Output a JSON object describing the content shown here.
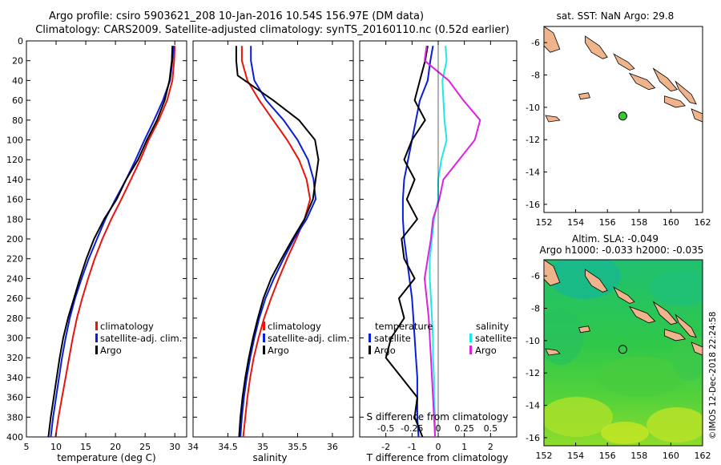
{
  "header": {
    "title_line1": "Argo profile: csiro 5903621_208 10-Jan-2016 10.54S 156.97E (DM data)",
    "title_line2": "Climatology: CARS2009. Satellite-adjusted climatology: synTS_20160110.nc (0.52d earlier)"
  },
  "colors": {
    "climatology": "#e8140c",
    "satellite": "#0a1ed8",
    "argo": "#000000",
    "argo_salinity_diff": "#e020e0",
    "satellite_salinity_diff": "#20e8e8",
    "land": "#f0b48c",
    "marker": "#33cc33"
  },
  "footer": {
    "credit": "©IMOS 12-Dec-2018 22:24:58"
  },
  "chart_data": [
    {
      "id": "temperature",
      "type": "line",
      "xlabel": "temperature (deg C)",
      "ylabel": "",
      "xlim": [
        5,
        32
      ],
      "ylim": [
        400,
        0
      ],
      "xticks": [
        "5",
        "10",
        "15",
        "20",
        "25",
        "30"
      ],
      "yticks": [
        "0",
        "20",
        "40",
        "60",
        "80",
        "100",
        "120",
        "140",
        "160",
        "180",
        "200",
        "220",
        "240",
        "260",
        "280",
        "300",
        "320",
        "340",
        "360",
        "380",
        "400"
      ],
      "legend": [
        "climatology",
        "satellite-adj. clim.",
        "Argo"
      ],
      "series": [
        {
          "name": "climatology",
          "color": "#e8140c",
          "x": [
            30.0,
            29.9,
            29.6,
            28.7,
            27.3,
            25.6,
            24.2,
            22.6,
            21.0,
            19.3,
            17.8,
            16.5,
            15.4,
            14.4,
            13.5,
            12.8,
            12.2,
            11.6,
            11.0,
            10.4,
            9.9
          ],
          "y": [
            5,
            20,
            40,
            60,
            80,
            100,
            120,
            140,
            160,
            180,
            200,
            220,
            240,
            260,
            280,
            300,
            320,
            340,
            360,
            380,
            400
          ]
        },
        {
          "name": "satellite-adj. clim.",
          "color": "#0a1ed8",
          "x": [
            29.8,
            29.6,
            29.2,
            28.0,
            26.5,
            24.9,
            23.4,
            21.8,
            20.0,
            18.3,
            16.9,
            15.5,
            14.3,
            13.2,
            12.3,
            11.6,
            11.0,
            10.5,
            10.0,
            9.5,
            9.1
          ],
          "y": [
            5,
            20,
            40,
            60,
            80,
            100,
            120,
            140,
            160,
            180,
            200,
            220,
            240,
            260,
            280,
            300,
            320,
            340,
            360,
            380,
            400
          ]
        },
        {
          "name": "Argo",
          "color": "#000000",
          "x": [
            29.6,
            29.5,
            29.1,
            28.3,
            27.0,
            25.3,
            23.8,
            21.8,
            20.2,
            18.1,
            16.4,
            15.1,
            14.0,
            13.0,
            12.0,
            11.2,
            10.6,
            10.1,
            9.6,
            9.1,
            8.7
          ],
          "y": [
            5,
            20,
            40,
            60,
            80,
            100,
            120,
            140,
            160,
            180,
            200,
            220,
            240,
            260,
            280,
            300,
            320,
            340,
            360,
            380,
            400
          ]
        }
      ]
    },
    {
      "id": "salinity",
      "type": "line",
      "xlabel": "salinity",
      "ylabel": "",
      "xlim": [
        34,
        36.3
      ],
      "ylim": [
        400,
        0
      ],
      "xticks": [
        "34",
        "34.5",
        "35",
        "35.5",
        "36"
      ],
      "legend": [
        "climatology",
        "satellite-adj. clim.",
        "Argo"
      ],
      "series": [
        {
          "name": "climatology",
          "color": "#e8140c",
          "x": [
            34.7,
            34.7,
            34.78,
            34.95,
            35.15,
            35.35,
            35.52,
            35.63,
            35.68,
            35.6,
            35.48,
            35.35,
            35.23,
            35.12,
            35.02,
            34.94,
            34.87,
            34.82,
            34.78,
            34.75,
            34.72
          ],
          "y": [
            5,
            20,
            40,
            60,
            80,
            100,
            120,
            140,
            160,
            180,
            200,
            220,
            240,
            260,
            280,
            300,
            320,
            340,
            360,
            380,
            400
          ]
        },
        {
          "name": "satellite-adj. clim.",
          "color": "#0a1ed8",
          "x": [
            34.83,
            34.83,
            34.88,
            35.05,
            35.3,
            35.5,
            35.65,
            35.73,
            35.76,
            35.63,
            35.45,
            35.3,
            35.16,
            35.04,
            34.95,
            34.88,
            34.82,
            34.77,
            34.73,
            34.7,
            34.68
          ],
          "y": [
            5,
            20,
            40,
            60,
            80,
            100,
            120,
            140,
            160,
            180,
            200,
            220,
            240,
            260,
            280,
            300,
            320,
            340,
            360,
            380,
            400
          ]
        },
        {
          "name": "Argo",
          "color": "#000000",
          "x": [
            34.62,
            34.62,
            34.64,
            35.15,
            35.52,
            35.75,
            35.8,
            35.76,
            35.72,
            35.6,
            35.43,
            35.27,
            35.12,
            35.01,
            34.93,
            34.86,
            34.8,
            34.75,
            34.71,
            34.68,
            34.66
          ],
          "y": [
            5,
            20,
            35,
            60,
            80,
            100,
            120,
            140,
            160,
            180,
            200,
            220,
            240,
            260,
            280,
            300,
            320,
            340,
            360,
            380,
            400
          ]
        }
      ]
    },
    {
      "id": "differences",
      "type": "line",
      "xlabel": "T difference from climatology",
      "x2label": "S difference from climatology",
      "xlim": [
        -3,
        3
      ],
      "x2lim": [
        -0.75,
        0.75
      ],
      "ylim": [
        400,
        0
      ],
      "xticks": [
        "-2",
        "-1",
        "0",
        "1",
        "2"
      ],
      "x2ticks": [
        "-0.5",
        "-0.25",
        "0",
        "0.25",
        "0.5"
      ],
      "legend_temperature_title": "temperature",
      "legend_salinity_title": "salinity",
      "legend_temperature": [
        "satellite",
        "Argo"
      ],
      "legend_salinity": [
        "satellite",
        "Argo"
      ],
      "series": [
        {
          "name": "temperature satellite",
          "color": "#0a1ed8",
          "axis": "T",
          "x": [
            -0.2,
            -0.3,
            -0.4,
            -0.7,
            -0.85,
            -1.0,
            -1.15,
            -1.3,
            -1.35,
            -1.35,
            -1.3,
            -1.2,
            -1.1,
            -1.0,
            -0.95,
            -0.9,
            -0.85,
            -0.8,
            -0.8,
            -0.8,
            -0.75
          ],
          "y": [
            5,
            20,
            40,
            60,
            80,
            100,
            120,
            140,
            160,
            180,
            200,
            220,
            240,
            260,
            280,
            300,
            320,
            340,
            360,
            380,
            400
          ]
        },
        {
          "name": "temperature Argo",
          "color": "#000000",
          "axis": "T",
          "x": [
            -0.4,
            -0.5,
            -0.7,
            -0.9,
            -0.5,
            -1.0,
            -1.3,
            -0.9,
            -1.2,
            -0.8,
            -1.4,
            -1.3,
            -0.9,
            -1.5,
            -1.3,
            -1.8,
            -2.0,
            -1.4,
            -0.8,
            -0.9,
            -0.6
          ],
          "y": [
            5,
            20,
            40,
            60,
            80,
            100,
            120,
            140,
            160,
            180,
            200,
            220,
            240,
            260,
            280,
            300,
            320,
            340,
            360,
            380,
            400
          ]
        },
        {
          "name": "salinity satellite",
          "color": "#20e8e8",
          "axis": "S",
          "x": [
            0.07,
            0.08,
            0.04,
            0.05,
            0.06,
            0.08,
            0.03,
            0.0,
            0.0,
            -0.04,
            -0.06,
            -0.08,
            -0.08,
            -0.07,
            -0.06,
            -0.05,
            -0.05,
            -0.04,
            -0.04,
            -0.03,
            -0.03
          ],
          "y": [
            5,
            20,
            40,
            60,
            80,
            100,
            120,
            140,
            160,
            180,
            200,
            220,
            240,
            260,
            280,
            300,
            320,
            340,
            360,
            380,
            400
          ]
        },
        {
          "name": "salinity Argo",
          "color": "#e020e0",
          "axis": "S",
          "x": [
            -0.11,
            -0.13,
            0.1,
            0.24,
            0.4,
            0.35,
            0.2,
            0.05,
            0.01,
            -0.05,
            -0.07,
            -0.1,
            -0.13,
            -0.11,
            -0.09,
            -0.08,
            -0.07,
            -0.06,
            -0.05,
            -0.04,
            -0.03
          ],
          "y": [
            5,
            20,
            40,
            60,
            80,
            100,
            120,
            140,
            160,
            180,
            200,
            220,
            240,
            260,
            280,
            300,
            320,
            340,
            360,
            380,
            400
          ]
        }
      ]
    },
    {
      "id": "map_sst",
      "type": "map",
      "title": "sat. SST: NaN Argo: 29.8",
      "xlim": [
        152,
        162
      ],
      "ylim": [
        -16.5,
        -5
      ],
      "xticks": [
        "152",
        "154",
        "156",
        "158",
        "160",
        "162"
      ],
      "yticks": [
        "-6",
        "-8",
        "-10",
        "-12",
        "-14",
        "-16"
      ],
      "marker": {
        "lon": 156.97,
        "lat": -10.54
      }
    },
    {
      "id": "map_sla",
      "type": "heatmap",
      "title_line1": "Altim. SLA: -0.049",
      "title_line2": "Argo h1000: -0.033 h2000: -0.035",
      "xlim": [
        152,
        162
      ],
      "ylim": [
        -16.5,
        -5
      ],
      "xticks": [
        "152",
        "154",
        "156",
        "158",
        "160",
        "162"
      ],
      "yticks": [
        "-6",
        "-8",
        "-10",
        "-12",
        "-14",
        "-16"
      ],
      "marker": {
        "lon": 156.97,
        "lat": -10.54
      }
    }
  ]
}
